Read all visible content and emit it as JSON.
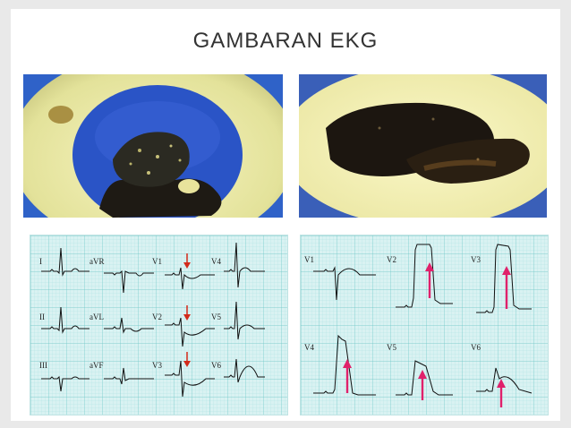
{
  "title": "GAMBARAN EKG",
  "colors": {
    "slide_bg": "#ffffff",
    "border_bg": "#e9e9e9",
    "ecg_grid_minor": "#a6dede",
    "ecg_grid_major": "#6cc6c6",
    "arrow_left": "#d22a1a",
    "arrow_right": "#e0216b"
  },
  "photos": [
    {
      "name": "artery-cross-section-thrombus-left"
    },
    {
      "name": "artery-cross-section-thrombus-right"
    }
  ],
  "ecg_left": {
    "leads": [
      "I",
      "aVR",
      "V1",
      "V4",
      "II",
      "aVL",
      "V2",
      "V5",
      "III",
      "aVF",
      "V3",
      "V6"
    ]
  },
  "ecg_right": {
    "leads": [
      "V1",
      "V2",
      "V3",
      "V4",
      "V5",
      "V6"
    ]
  }
}
